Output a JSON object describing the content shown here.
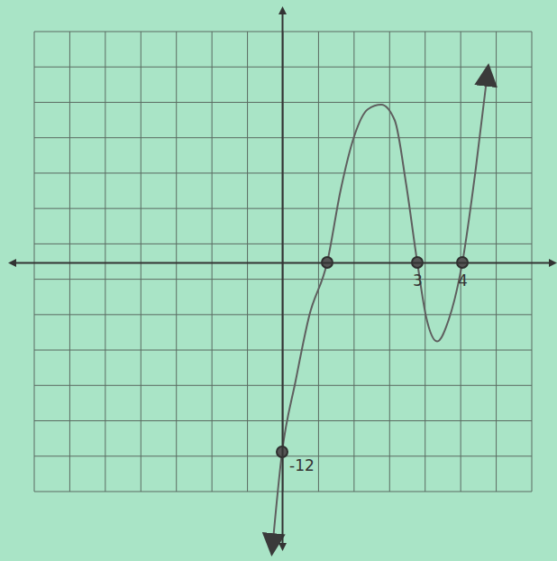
{
  "chart_data": {
    "type": "line",
    "x": [
      -0.2,
      0,
      0.3,
      0.6,
      1,
      1.3,
      1.6,
      1.9,
      2.2,
      2.5,
      2.75,
      3,
      3.2,
      3.44,
      3.7,
      4,
      4.3,
      4.54
    ],
    "series": [
      {
        "type": "line",
        "color": "#5f5f5f",
        "marker": "none",
        "line_style": "solid",
        "values": [
          -17.6,
          -12,
          -7.5,
          -3.4,
          0,
          4.6,
          8,
          9.7,
          10,
          9,
          5,
          0,
          -3.5,
          -5,
          -3.6,
          0,
          6,
          11.6
        ]
      },
      {
        "type": "scatter",
        "color": "#555555",
        "marker": "o",
        "values": [
          null,
          -12,
          null,
          null,
          0,
          null,
          null,
          null,
          null,
          null,
          null,
          0,
          null,
          null,
          null,
          0,
          null,
          null
        ]
      }
    ],
    "xlim": [
      -6,
      6
    ],
    "ylim": [
      -18,
      16
    ],
    "xticks": [
      3,
      4
    ],
    "yticks": [
      -12
    ],
    "grid": true
  }
}
